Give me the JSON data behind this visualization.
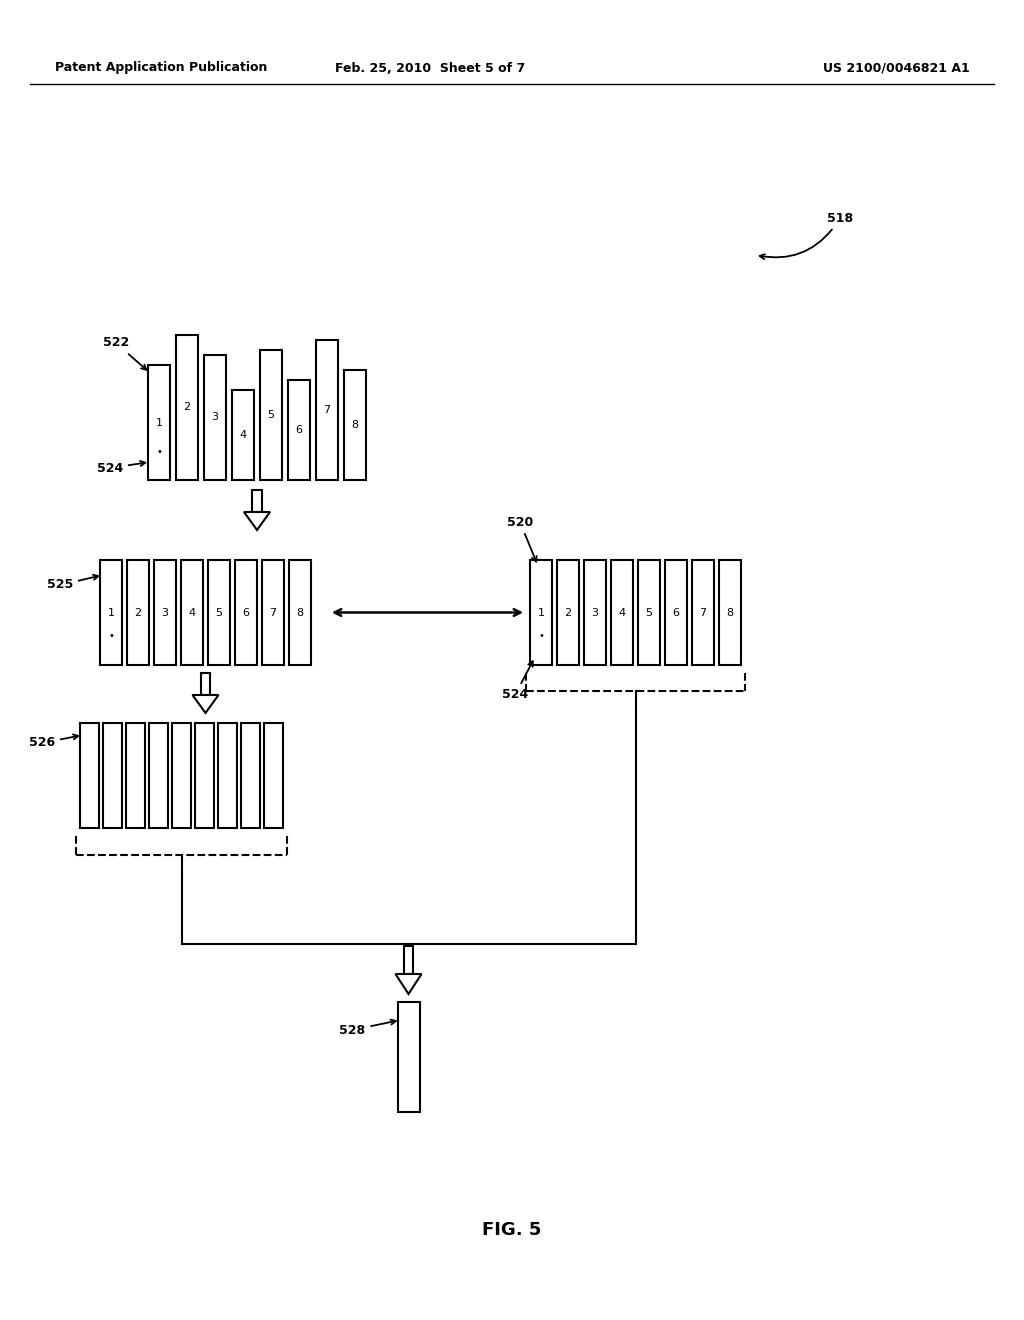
{
  "header_left": "Patent Application Publication",
  "header_mid": "Feb. 25, 2010  Sheet 5 of 7",
  "header_right": "US 2100/0046821 A1",
  "fig_label": "FIG. 5",
  "bg_color": "#ffffff"
}
